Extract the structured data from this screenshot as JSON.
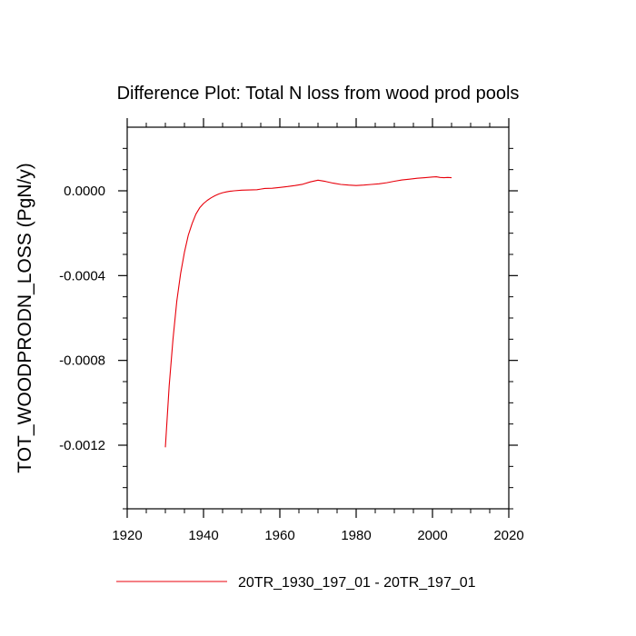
{
  "chart_data": {
    "type": "line",
    "title": "Difference Plot: Total N loss from wood prod pools",
    "xlabel": "",
    "ylabel": "TOT_WOODPRODN_LOSS  (PgN/y)",
    "xlim": [
      1920,
      2020
    ],
    "ylim": [
      -0.0015,
      0.0003
    ],
    "xticks": [
      1920,
      1940,
      1960,
      1980,
      2000,
      2020
    ],
    "xtick_labels": [
      "1920",
      "1940",
      "1960",
      "1980",
      "2000",
      "2020"
    ],
    "yticks": [
      0.0,
      -0.0004,
      -0.0008,
      -0.0012
    ],
    "ytick_labels": [
      "0.0000",
      "-0.0004",
      "-0.0008",
      "-0.0012"
    ],
    "legend_position": "bottom",
    "series": [
      {
        "name": "20TR_1930_197_01 - 20TR_197_01",
        "color": "#e8000b",
        "x": [
          1930,
          1931,
          1932,
          1933,
          1934,
          1935,
          1936,
          1937,
          1938,
          1939,
          1940,
          1941,
          1942,
          1943,
          1944,
          1945,
          1946,
          1947,
          1948,
          1950,
          1952,
          1954,
          1955,
          1956,
          1958,
          1960,
          1962,
          1964,
          1966,
          1968,
          1970,
          1972,
          1974,
          1976,
          1978,
          1980,
          1982,
          1984,
          1986,
          1988,
          1990,
          1992,
          1994,
          1996,
          1998,
          2000,
          2001,
          2002,
          2003,
          2004,
          2005
        ],
        "values": [
          -0.00121,
          -0.00092,
          -0.0007,
          -0.00052,
          -0.00039,
          -0.00029,
          -0.00021,
          -0.000155,
          -0.00011,
          -8e-05,
          -6e-05,
          -4.5e-05,
          -3.3e-05,
          -2.3e-05,
          -1.5e-05,
          -9e-06,
          -5e-06,
          -2e-06,
          0.0,
          3e-06,
          4e-06,
          5e-06,
          8e-06,
          1.1e-05,
          1.2e-05,
          1.6e-05,
          2e-05,
          2.5e-05,
          3.1e-05,
          4.2e-05,
          5e-05,
          4.4e-05,
          3.6e-05,
          3e-05,
          2.7e-05,
          2.5e-05,
          2.7e-05,
          3e-05,
          3.3e-05,
          3.8e-05,
          4.5e-05,
          5.1e-05,
          5.5e-05,
          5.9e-05,
          6.2e-05,
          6.5e-05,
          6.6e-05,
          6.3e-05,
          6.2e-05,
          6.3e-05,
          6.2e-05
        ]
      }
    ]
  }
}
